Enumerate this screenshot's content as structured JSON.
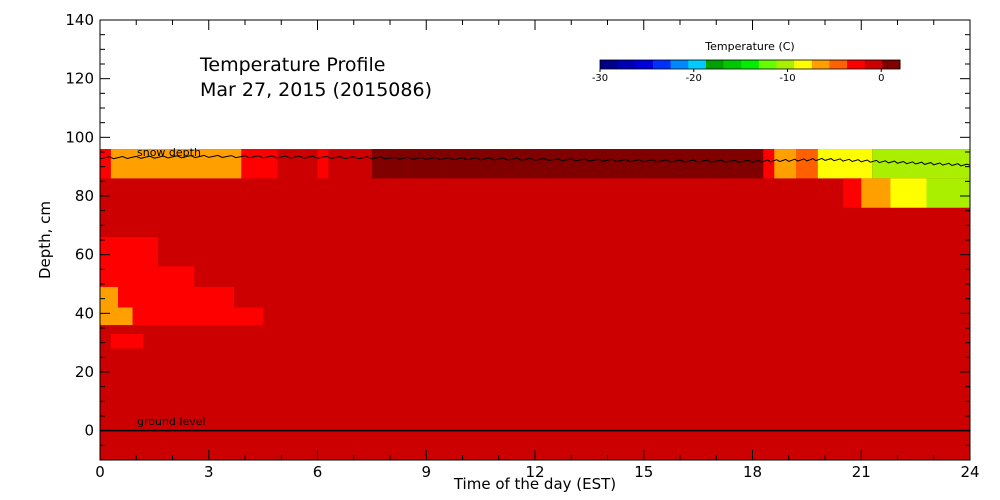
{
  "chart_data": {
    "type": "heatmap",
    "title": "Temperature Profile",
    "subtitle": "Mar 27, 2015 (2015086)",
    "xlabel": "Time of the day (EST)",
    "ylabel": "Depth, cm",
    "xlim": [
      0,
      24
    ],
    "ylim": [
      -10,
      140
    ],
    "x_ticks": [
      "0",
      "3",
      "6",
      "9",
      "12",
      "15",
      "18",
      "21",
      "24"
    ],
    "y_ticks": [
      "0",
      "20",
      "40",
      "60",
      "80",
      "100",
      "120",
      "140"
    ],
    "snow_depth_label": "snow depth",
    "ground_label": "ground level",
    "colorbar": {
      "title": "Temperature (C)",
      "tick_labels": [
        "-30",
        "-20",
        "-10",
        "0"
      ],
      "range": [
        -30,
        2
      ],
      "colors": [
        "#00008b",
        "#0000b4",
        "#0000dc",
        "#0030ff",
        "#0088ff",
        "#00ccff",
        "#00a000",
        "#00c800",
        "#00ee00",
        "#66ff00",
        "#aaee00",
        "#ffff00",
        "#ffa000",
        "#ff6000",
        "#ff0000",
        "#cc0000",
        "#800000"
      ]
    },
    "snow_depth": [
      [
        0,
        93
      ],
      [
        3,
        93.5
      ],
      [
        6,
        93.2
      ],
      [
        9,
        92.8
      ],
      [
        12,
        92.5
      ],
      [
        15,
        92
      ],
      [
        18,
        91.8
      ],
      [
        20,
        92.5
      ],
      [
        22,
        91.5
      ],
      [
        24,
        90.5
      ]
    ],
    "ground_level": 0,
    "default_temperature": -0.5,
    "cells": [
      {
        "x0": 0,
        "x1": 0.3,
        "y0": 86,
        "y1": 96,
        "t": -2
      },
      {
        "x0": 0.3,
        "x1": 2.8,
        "y0": 86,
        "y1": 96,
        "t": -6
      },
      {
        "x0": 2.8,
        "x1": 3.9,
        "y0": 86,
        "y1": 96,
        "t": -6
      },
      {
        "x0": 3.9,
        "x1": 4.5,
        "y0": 86,
        "y1": 96,
        "t": -3
      },
      {
        "x0": 4.5,
        "x1": 4.9,
        "y0": 86,
        "y1": 96,
        "t": -2
      },
      {
        "x0": 6.0,
        "x1": 6.3,
        "y0": 86,
        "y1": 96,
        "t": -2
      },
      {
        "x0": 7.5,
        "x1": 8.5,
        "y0": 86,
        "y1": 96,
        "t": 0.5
      },
      {
        "x0": 8.5,
        "x1": 9.5,
        "y0": 86,
        "y1": 96,
        "t": 1
      },
      {
        "x0": 9.5,
        "x1": 12.5,
        "y0": 86,
        "y1": 96,
        "t": 1.5
      },
      {
        "x0": 12.5,
        "x1": 17.5,
        "y0": 86,
        "y1": 96,
        "t": 2
      },
      {
        "x0": 17.5,
        "x1": 18.3,
        "y0": 86,
        "y1": 96,
        "t": 0.5
      },
      {
        "x0": 18.3,
        "x1": 18.6,
        "y0": 86,
        "y1": 96,
        "t": -2
      },
      {
        "x0": 18.6,
        "x1": 19.2,
        "y0": 86,
        "y1": 96,
        "t": -6
      },
      {
        "x0": 19.2,
        "x1": 19.8,
        "y0": 86,
        "y1": 96,
        "t": -4
      },
      {
        "x0": 19.8,
        "x1": 21.3,
        "y0": 86,
        "y1": 96,
        "t": -8
      },
      {
        "x0": 21.3,
        "x1": 24,
        "y0": 86,
        "y1": 96,
        "t": -11
      },
      {
        "x0": 20.5,
        "x1": 21.0,
        "y0": 76,
        "y1": 86,
        "t": -3
      },
      {
        "x0": 21.0,
        "x1": 21.8,
        "y0": 76,
        "y1": 86,
        "t": -6
      },
      {
        "x0": 21.8,
        "x1": 22.8,
        "y0": 76,
        "y1": 86,
        "t": -8
      },
      {
        "x0": 22.8,
        "x1": 24,
        "y0": 76,
        "y1": 86,
        "t": -11
      },
      {
        "x0": 0,
        "x1": 1.6,
        "y0": 56,
        "y1": 66,
        "t": -3
      },
      {
        "x0": 0,
        "x1": 2.6,
        "y0": 49,
        "y1": 56,
        "t": -3
      },
      {
        "x0": 0,
        "x1": 0.5,
        "y0": 42,
        "y1": 49,
        "t": -6
      },
      {
        "x0": 0.5,
        "x1": 3.7,
        "y0": 42,
        "y1": 49,
        "t": -3
      },
      {
        "x0": 0,
        "x1": 0.9,
        "y0": 36,
        "y1": 42,
        "t": -6
      },
      {
        "x0": 0.9,
        "x1": 4.5,
        "y0": 36,
        "y1": 42,
        "t": -3
      },
      {
        "x0": 0.3,
        "x1": 1.2,
        "y0": 28,
        "y1": 33,
        "t": -3
      }
    ]
  }
}
